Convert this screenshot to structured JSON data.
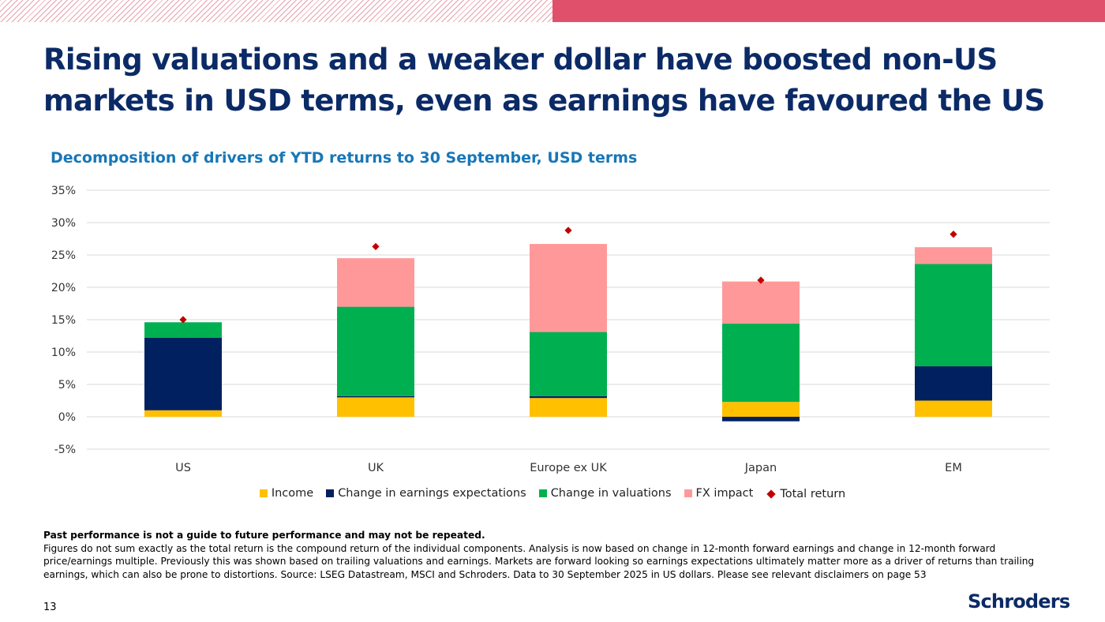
{
  "title": "Rising valuations and a weaker dollar have boosted non-US markets in USD terms, even as earnings have favoured the US",
  "subtitle": "Decomposition of drivers of YTD returns to 30 September, USD terms",
  "colors": {
    "brand_navy": "#0b2a66",
    "accent_red": "#e0506a",
    "subtitle_blue": "#1777b8"
  },
  "chart_data": {
    "type": "bar",
    "stacked": true,
    "categories": [
      "US",
      "UK",
      "Europe ex UK",
      "Japan",
      "EM"
    ],
    "ylim": [
      -5,
      35
    ],
    "yticks": [
      -5,
      0,
      5,
      10,
      15,
      20,
      25,
      30,
      35
    ],
    "ytick_labels": [
      "-5%",
      "0%",
      "5%",
      "10%",
      "15%",
      "20%",
      "25%",
      "30%",
      "35%"
    ],
    "grid": true,
    "legend_position": "bottom",
    "series": [
      {
        "name": "Income",
        "color": "#ffc000",
        "values": [
          1.0,
          3.0,
          2.9,
          2.3,
          2.5
        ]
      },
      {
        "name": "Change in earnings expectations",
        "color": "#002060",
        "values": [
          11.2,
          0.2,
          0.3,
          -0.7,
          5.3
        ]
      },
      {
        "name": "Change in valuations",
        "color": "#00b050",
        "values": [
          2.4,
          13.8,
          9.9,
          12.1,
          15.8
        ]
      },
      {
        "name": "FX impact",
        "color": "#ff9999",
        "values": [
          0.0,
          7.5,
          13.6,
          6.5,
          2.6
        ]
      }
    ],
    "markers": {
      "name": "Total return",
      "color": "#c00000",
      "shape": "diamond",
      "values": [
        15.0,
        26.3,
        28.8,
        21.1,
        28.2
      ]
    }
  },
  "notes": {
    "disclaimer": "Past performance is not a guide to future performance and may not be repeated.",
    "body": "Figures do not sum exactly as the total return is the compound return of the individual components. Analysis is now based on change in 12-month forward earnings and change in 12-month forward price/earnings multiple. Previously this was shown based on trailing valuations and earnings. Markets are forward looking so earnings expectations ultimately matter more as a driver of returns than trailing earnings, which can also be prone to distortions. Source: LSEG Datastream, MSCI and Schroders. Data to 30 September 2025 in US dollars. Please see relevant disclaimers on page 53"
  },
  "page_number": "13",
  "logo_text": "Schroders"
}
